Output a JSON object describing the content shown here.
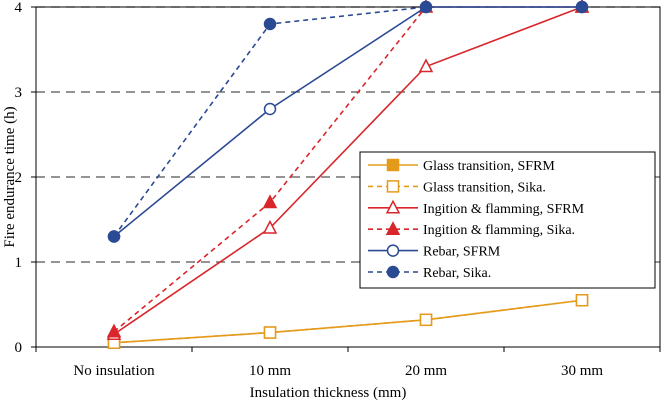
{
  "chart_data": {
    "type": "line",
    "title": "",
    "xlabel": "Insulation thickness (mm)",
    "ylabel": "Fire endurance time (h)",
    "categories": [
      "No insulation",
      "10 mm",
      "20 mm",
      "30 mm"
    ],
    "ylim": [
      0,
      4
    ],
    "yticks": [
      "0",
      "1",
      "2",
      "3",
      "4"
    ],
    "grid": "horizontal dashed",
    "legend_position": "right",
    "series": [
      {
        "name": "Glass transition, SFRM",
        "color": "#e49b1c",
        "dash": "solid",
        "marker": "square",
        "filled": true,
        "values": [
          0.05,
          0.17,
          0.32,
          0.55
        ]
      },
      {
        "name": "Glass transition,  Sika.",
        "color": "#e49b1c",
        "dash": "dashed",
        "marker": "square",
        "filled": false,
        "values": [
          0.05,
          0.17,
          0.32,
          0.55
        ]
      },
      {
        "name": "Ingition & flamming, SFRM",
        "color": "#d8262b",
        "dash": "solid",
        "marker": "triangle",
        "filled": false,
        "values": [
          0.15,
          1.4,
          3.3,
          4.0
        ]
      },
      {
        "name": "Ingition & flamming, Sika.",
        "color": "#d8262b",
        "dash": "dashed",
        "marker": "triangle",
        "filled": true,
        "values": [
          0.18,
          1.7,
          4.0,
          4.0
        ]
      },
      {
        "name": "Rebar, SFRM",
        "color": "#2b4a94",
        "dash": "solid",
        "marker": "circle",
        "filled": false,
        "values": [
          1.3,
          2.8,
          4.0,
          4.0
        ]
      },
      {
        "name": "Rebar, Sika.",
        "color": "#2b4a94",
        "dash": "dashed",
        "marker": "circle",
        "filled": true,
        "values": [
          1.3,
          3.8,
          4.0,
          4.0
        ]
      }
    ]
  }
}
